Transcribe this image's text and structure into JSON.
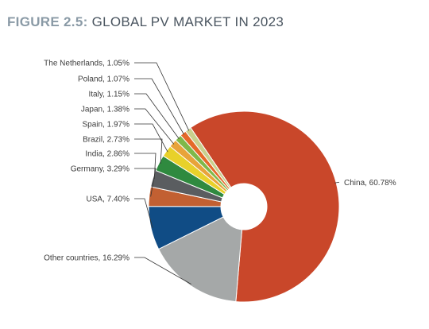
{
  "title": {
    "prefix": "FIGURE 2.5:",
    "main": " GLOBAL PV MARKET IN 2023"
  },
  "chart_data": {
    "type": "pie",
    "title": "FIGURE 2.5: GLOBAL PV MARKET IN 2023",
    "donut": true,
    "unit": "%",
    "slices": [
      {
        "label": "China, 60.78%",
        "name": "China",
        "value": 60.78,
        "color": "#c9472a"
      },
      {
        "label": "Other countries, 16.29%",
        "name": "Other countries",
        "value": 16.29,
        "color": "#a5a8a8"
      },
      {
        "label": "USA, 7.40%",
        "name": "USA",
        "value": 7.4,
        "color": "#104c85"
      },
      {
        "label": "Germany, 3.29%",
        "name": "Germany",
        "value": 3.29,
        "color": "#c26032"
      },
      {
        "label": "India, 2.86%",
        "name": "India",
        "value": 2.86,
        "color": "#5a5d60"
      },
      {
        "label": "Brazil, 2.73%",
        "name": "Brazil",
        "value": 2.73,
        "color": "#2f8a3f"
      },
      {
        "label": "Spain, 1.97%",
        "name": "Spain",
        "value": 1.97,
        "color": "#e8d12a"
      },
      {
        "label": "Japan, 1.38%",
        "name": "Japan",
        "value": 1.38,
        "color": "#e8a33a"
      },
      {
        "label": "Italy, 1.15%",
        "name": "Italy",
        "value": 1.15,
        "color": "#7fb84a"
      },
      {
        "label": "Poland, 1.07%",
        "name": "Poland",
        "value": 1.07,
        "color": "#e56a2a"
      },
      {
        "label": "The Netherlands, 1.05%",
        "name": "The Netherlands",
        "value": 1.05,
        "color": "#c9d08e"
      }
    ]
  }
}
